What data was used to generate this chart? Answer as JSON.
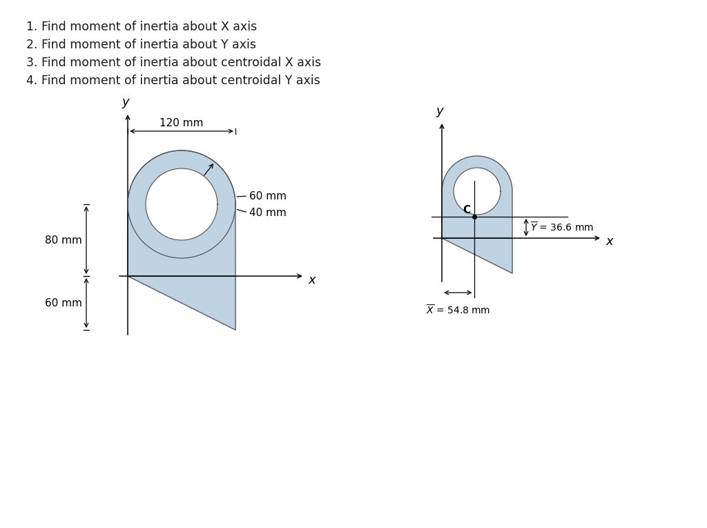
{
  "bg_color": "#ffffff",
  "text_color": "#1a1a1a",
  "shape_fill": "#b8cfe0",
  "shape_edge": "#555555",
  "questions": [
    "1. Find moment of inertia about X axis",
    "2. Find moment of inertia about Y axis",
    "3. Find moment of inertia about centroidal X axis",
    "4. Find moment of inertia about centroidal Y axis"
  ],
  "dim_120": "120 mm",
  "dim_60": "60 mm",
  "dim_40": "40 mm",
  "dim_80": "80 mm",
  "dim_60b": "60 mm",
  "centroid_label": "C"
}
